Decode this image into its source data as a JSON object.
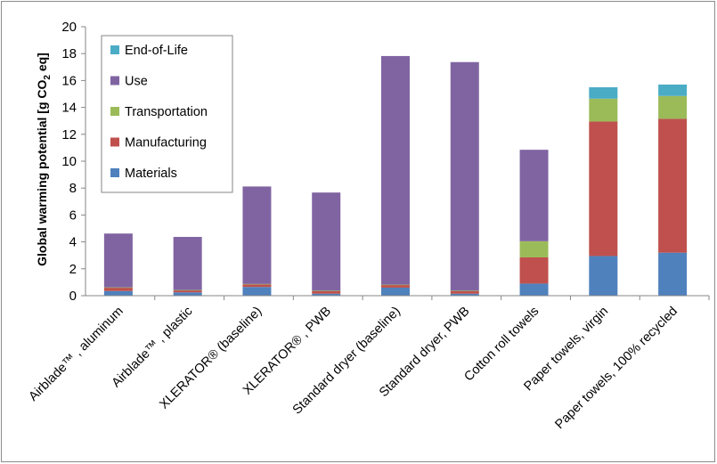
{
  "chart_data": {
    "type": "bar",
    "stacked": true,
    "title": "",
    "xlabel": "",
    "ylabel": {
      "prefix": "Global warming potential [g CO",
      "subscript": "2",
      "suffix": " eq]"
    },
    "ylim": [
      0,
      20
    ],
    "yticks": [
      0,
      2,
      4,
      6,
      8,
      10,
      12,
      14,
      16,
      18,
      20
    ],
    "grid": false,
    "legend_position": "top-left",
    "legend_order": [
      "End-of-Life",
      "Use",
      "Transportation",
      "Manufacturing",
      "Materials"
    ],
    "categories": [
      "Airblade™ , aluminum",
      "Airblade™ , plastic",
      "XLERATOR® (baseline)",
      "XLERATOR® , PWB",
      "Standard dryer (baseline)",
      "Standard dryer, PWB",
      "Cotton roll towels",
      "Paper towels, virgin",
      "Paper towels, 100% recycled"
    ],
    "series": [
      {
        "name": "Materials",
        "color": "#4f81bd",
        "values": [
          0.35,
          0.25,
          0.65,
          0.15,
          0.6,
          0.15,
          0.9,
          2.95,
          3.2
        ]
      },
      {
        "name": "Manufacturing",
        "color": "#c0504d",
        "values": [
          0.25,
          0.15,
          0.2,
          0.2,
          0.2,
          0.2,
          1.95,
          10.0,
          9.95
        ]
      },
      {
        "name": "Transportation",
        "color": "#9bbb59",
        "values": [
          0.02,
          0.02,
          0.02,
          0.02,
          0.02,
          0.02,
          1.2,
          1.7,
          1.7
        ]
      },
      {
        "name": "Use",
        "color": "#8064a2",
        "values": [
          4.0,
          3.95,
          7.25,
          7.3,
          17.0,
          17.0,
          6.8,
          0,
          0
        ]
      },
      {
        "name": "End-of-Life",
        "color": "#4bacc6",
        "values": [
          0,
          0,
          0,
          0,
          0,
          0,
          0,
          0.85,
          0.85
        ]
      }
    ]
  }
}
